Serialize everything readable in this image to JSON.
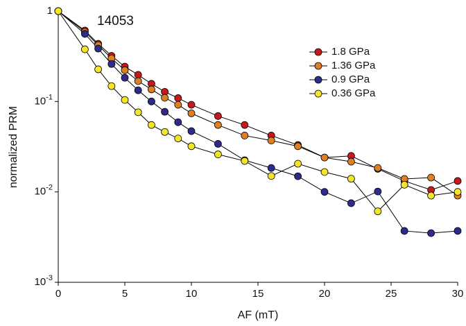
{
  "chart_data": {
    "type": "line",
    "log_y": true,
    "annotation": "14053",
    "x_label": "AF (mT)",
    "y_label": "normalized PRM",
    "x": [
      0,
      2,
      3,
      4,
      5,
      6,
      7,
      8,
      9,
      10,
      12,
      14,
      16,
      18,
      20,
      22,
      24,
      26,
      28,
      30
    ],
    "series": [
      {
        "name": "1.8 GPa",
        "color": "#c8181e",
        "values": [
          1,
          0.61,
          0.435,
          0.32,
          0.243,
          0.197,
          0.157,
          0.128,
          0.109,
          0.092,
          0.069,
          0.055,
          0.042,
          0.033,
          0.024,
          0.025,
          0.018,
          0.0132,
          0.0105,
          0.0132
        ]
      },
      {
        "name": "1.36 GPa",
        "color": "#de7f24",
        "values": [
          1,
          0.59,
          0.42,
          0.3,
          0.222,
          0.168,
          0.136,
          0.11,
          0.092,
          0.074,
          0.055,
          0.042,
          0.037,
          0.032,
          0.024,
          0.0216,
          0.0184,
          0.0139,
          0.0144,
          0.0091
        ]
      },
      {
        "name": "0.9 GPa",
        "color": "#2e2b8c",
        "values": [
          1,
          0.56,
          0.385,
          0.26,
          0.183,
          0.133,
          0.1,
          0.077,
          0.059,
          0.047,
          0.034,
          0.0224,
          0.0184,
          0.0149,
          0.01,
          0.0075,
          0.0101,
          0.0037,
          0.0035,
          0.0037
        ]
      },
      {
        "name": "0.36 GPa",
        "color": "#f2e52a",
        "values": [
          1,
          0.378,
          0.227,
          0.148,
          0.104,
          0.076,
          0.055,
          0.046,
          0.039,
          0.032,
          0.026,
          0.022,
          0.015,
          0.0205,
          0.0166,
          0.014,
          0.0061,
          0.012,
          0.0091,
          0.01
        ]
      }
    ],
    "xlim": [
      0,
      30
    ],
    "xticks": [
      0,
      5,
      10,
      15,
      20,
      25,
      30
    ],
    "ylim": [
      0.001,
      1
    ],
    "yticks": [
      {
        "value": 0.001,
        "label": "10-3"
      },
      {
        "value": 0.01,
        "label": "10-2"
      },
      {
        "value": 0.1,
        "label": "10-1"
      },
      1
    ]
  }
}
